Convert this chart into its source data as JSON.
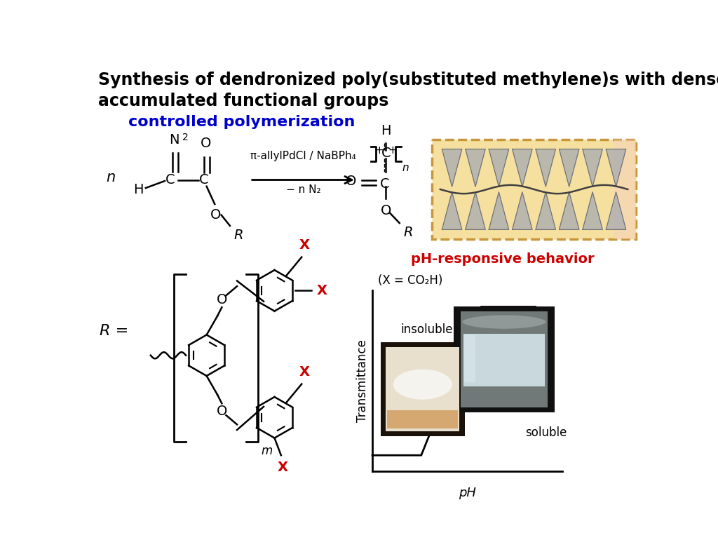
{
  "title_line1": "Synthesis of dendronized poly(substituted methylene)s with densely",
  "title_line2": "accumulated functional groups",
  "title_color": "#000000",
  "title_fontsize": 17,
  "controlled_poly_text": "controlled polymerization",
  "controlled_poly_color": "#0000CC",
  "controlled_poly_fontsize": 16,
  "reagent_line1": "π-allylPdCl / NaBPh₄",
  "reagent_line2": "− n N₂",
  "ph_responsive_text": "pH-responsive behavior",
  "ph_responsive_color": "#CC0000",
  "ph_sub_text": "(X = CO₂H)",
  "ph_label": "pH",
  "transmittance_label": "Transmittance",
  "insoluble_label": "insoluble",
  "soluble_label": "soluble",
  "background_color": "#ffffff",
  "red_x_color": "#CC0000",
  "black": "#000000",
  "blue": "#0000CC"
}
